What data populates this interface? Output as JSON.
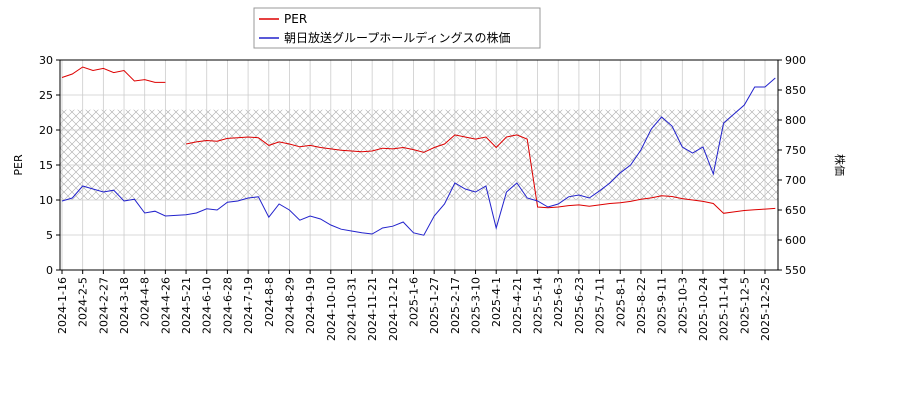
{
  "chart_data": {
    "type": "line",
    "x": [
      "2024-1-16",
      null,
      "2024-2-5",
      null,
      "2024-2-27",
      null,
      "2024-3-18",
      null,
      "2024-4-8",
      null,
      "2024-4-26",
      null,
      "2024-5-21",
      null,
      "2024-6-10",
      null,
      "2024-6-28",
      null,
      "2024-7-19",
      null,
      "2024-8-8",
      null,
      "2024-8-29",
      null,
      "2024-9-19",
      null,
      "2024-10-10",
      null,
      "2024-10-31",
      null,
      "2024-11-21",
      null,
      "2024-12-12",
      null,
      "2025-1-6",
      null,
      "2025-1-27",
      null,
      "2025-2-17",
      null,
      "2025-3-10",
      null,
      "2025-4-1",
      null,
      "2025-4-21",
      null,
      "2025-5-14",
      null,
      "2025-6-3",
      null,
      "2025-6-23",
      null,
      "2025-7-11",
      null,
      "2025-8-1",
      null,
      "2025-8-22",
      null,
      "2025-9-11",
      null,
      "2025-10-3",
      null,
      "2025-10-24",
      null,
      "2025-11-14",
      null,
      "2025-12-5",
      null,
      "2025-12-25",
      null
    ],
    "ylabel": "PER",
    "y2label": "株価",
    "ylim": [
      0,
      30
    ],
    "yticks": [
      0,
      5,
      10,
      15,
      20,
      25,
      30
    ],
    "y2lim": [
      550,
      900
    ],
    "y2ticks": [
      550,
      600,
      650,
      700,
      750,
      800,
      850,
      900
    ],
    "grid": true,
    "legend": "upper center",
    "shaded_range": [
      10,
      22.9
    ],
    "series": [
      {
        "name": "PER",
        "color": "#dd0000",
        "values": [
          27.5,
          28,
          29,
          28.5,
          28.8,
          28.2,
          28.5,
          27,
          27.2,
          26.8,
          26.8,
          null,
          18,
          18.3,
          18.5,
          18.4,
          18.8,
          18.9,
          19,
          18.9,
          17.8,
          18.3,
          18,
          17.6,
          17.8,
          17.5,
          17.3,
          17.1,
          17,
          16.9,
          17,
          17.4,
          17.3,
          17.5,
          17.2,
          16.8,
          17.5,
          18,
          19.3,
          19,
          18.7,
          19,
          17.5,
          19,
          19.3,
          18.7,
          9,
          8.9,
          9,
          9.2,
          9.3,
          9.1,
          9.3,
          9.5,
          9.6,
          9.8,
          10.1,
          10.3,
          10.6,
          10.5,
          10.2,
          10,
          9.8,
          9.5,
          8.1,
          8.3,
          8.5,
          8.6,
          8.7,
          8.8
        ]
      },
      {
        "name": "朝日放送グループホールディングスの株価",
        "color": "#2222cc",
        "axis": "y2",
        "values": [
          665,
          670,
          690,
          685,
          680,
          683,
          665,
          668,
          645,
          648,
          640,
          641,
          642,
          645,
          652,
          650,
          663,
          665,
          670,
          672,
          638,
          660,
          650,
          633,
          640,
          635,
          625,
          618,
          615,
          612,
          610,
          620,
          623,
          630,
          612,
          608,
          640,
          660,
          695,
          685,
          680,
          690,
          620,
          680,
          695,
          670,
          665,
          655,
          660,
          672,
          675,
          670,
          682,
          695,
          712,
          725,
          750,
          785,
          805,
          790,
          755,
          745,
          755,
          710,
          795,
          810,
          825,
          855,
          855,
          870
        ]
      }
    ]
  }
}
